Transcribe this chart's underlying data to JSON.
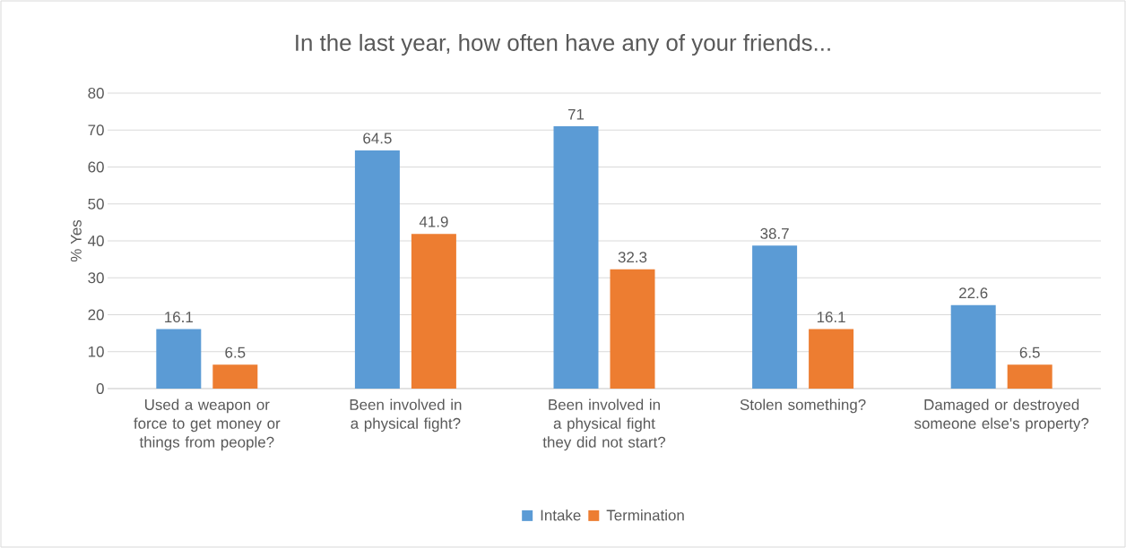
{
  "chart_data": {
    "type": "bar",
    "title": "In the last year, how often have any of your friends...",
    "ylabel": "% Yes",
    "categories": [
      "Used a weapon or force to get money or things from people?",
      "Been involved in a physical fight?",
      "Been involved in a physical fight they did not start?",
      "Stolen something?",
      "Damaged or destroyed someone else's property?"
    ],
    "series": [
      {
        "name": "Intake",
        "color": "#5b9bd5",
        "values": [
          16.1,
          64.5,
          71,
          38.7,
          22.6
        ]
      },
      {
        "name": "Termination",
        "color": "#ed7d31",
        "values": [
          6.5,
          41.9,
          32.3,
          16.1,
          6.5
        ]
      }
    ],
    "ylim": [
      0,
      80
    ],
    "yticks": [
      0,
      10,
      20,
      30,
      40,
      50,
      60,
      70,
      80
    ],
    "grid": "y",
    "legend": "bottom",
    "data_labels": true
  }
}
